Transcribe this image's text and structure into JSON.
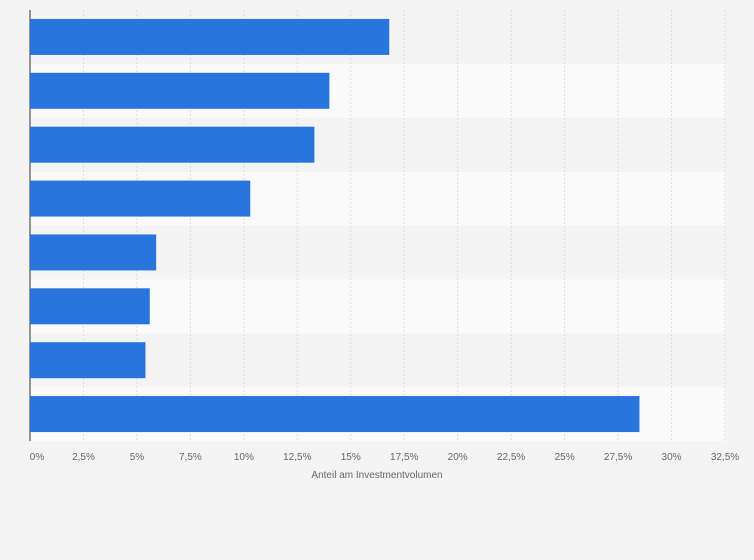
{
  "chart_data": {
    "type": "bar",
    "orientation": "horizontal",
    "categories": [
      "",
      "",
      "",
      "",
      "",
      "",
      "",
      ""
    ],
    "values": [
      16.8,
      14.0,
      13.3,
      10.3,
      5.9,
      5.6,
      5.4,
      28.5
    ],
    "xlabel": "Anteil am Investmentvolumen",
    "ylabel": "",
    "xlim": [
      0,
      32.5
    ],
    "x_ticks": [
      0,
      2.5,
      5,
      7.5,
      10,
      12.5,
      15,
      17.5,
      20,
      22.5,
      25,
      27.5,
      30,
      32.5
    ],
    "x_tick_labels": [
      "0%",
      "2,5%",
      "5%",
      "7,5%",
      "10%",
      "12,5%",
      "15%",
      "17,5%",
      "20%",
      "22,5%",
      "25%",
      "27,5%",
      "30%",
      "32,5%"
    ],
    "grid": true,
    "bar_color": "#2876dd",
    "row_band_colors": [
      "#f4f4f4",
      "#fafafa"
    ]
  }
}
